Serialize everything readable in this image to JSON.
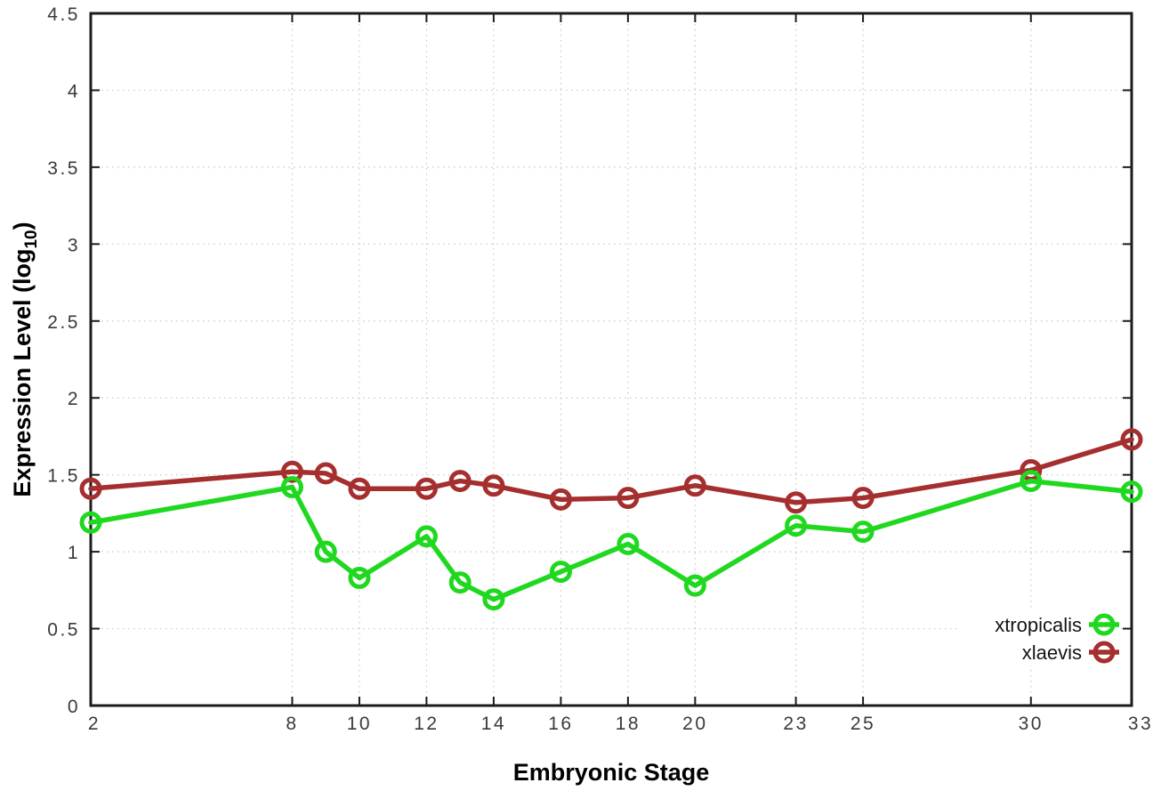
{
  "chart_data": {
    "type": "line",
    "title": "",
    "xlabel": "Embryonic Stage",
    "ylabel": {
      "main": "Expression Level (log",
      "sub": "10",
      "end": ")"
    },
    "xlim": [
      2,
      33
    ],
    "ylim": [
      0,
      4.5
    ],
    "x_tick_values": [
      2,
      8,
      10,
      12,
      14,
      16,
      18,
      20,
      23,
      25,
      30,
      33
    ],
    "x_tick_labels": [
      "2",
      "8",
      "10",
      "12",
      "14",
      "16",
      "18",
      "20",
      "23",
      "25",
      "30",
      "33"
    ],
    "y_tick_values": [
      0,
      0.5,
      1,
      1.5,
      2,
      2.5,
      3,
      3.5,
      4,
      4.5
    ],
    "y_tick_labels": [
      "0",
      "0.5",
      "1",
      "1.5",
      "2",
      "2.5",
      "3",
      "3.5",
      "4",
      "4.5"
    ],
    "grid": true,
    "legend": {
      "position": "bottom-right",
      "entries": [
        "xtropicalis",
        "xlaevis"
      ]
    },
    "x": [
      2,
      8,
      9,
      10,
      12,
      13,
      14,
      16,
      18,
      20,
      23,
      25,
      30,
      33
    ],
    "series": [
      {
        "name": "xtropicalis",
        "color": "#1fd81f",
        "marker": "open-circle",
        "values": [
          1.19,
          1.42,
          1.0,
          0.83,
          1.1,
          0.8,
          0.69,
          0.87,
          1.05,
          0.78,
          1.17,
          1.13,
          1.46,
          1.39
        ]
      },
      {
        "name": "xlaevis",
        "color": "#a52f2f",
        "marker": "open-circle",
        "values": [
          1.41,
          1.52,
          1.51,
          1.41,
          1.41,
          1.46,
          1.43,
          1.34,
          1.35,
          1.43,
          1.32,
          1.35,
          1.53,
          1.73
        ]
      }
    ],
    "colors": {
      "grid": "#c6c6c6",
      "axis": "#1c1c1c",
      "tick_text": "#3a3a3a",
      "label_text": "#000000",
      "legend_background": "#ffffff"
    }
  }
}
